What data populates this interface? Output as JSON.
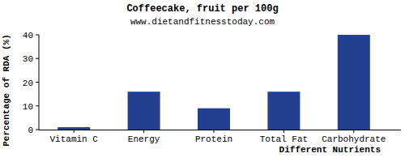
{
  "chart_data": {
    "type": "bar",
    "title": "Coffeecake, fruit per 100g",
    "subtitle": "www.dietandfitnesstoday.com",
    "x_label": "Different Nutrients",
    "y_label": "Percentage of RDA (%)",
    "categories": [
      "Vitamin C",
      "Energy",
      "Protein",
      "Total Fat",
      "Carbohydrate"
    ],
    "values": [
      1,
      16,
      9,
      16,
      40
    ],
    "color": "#233f8f",
    "ylim": [
      0,
      40
    ],
    "yticks": [
      0,
      10,
      20,
      30,
      40
    ],
    "grid": false
  }
}
